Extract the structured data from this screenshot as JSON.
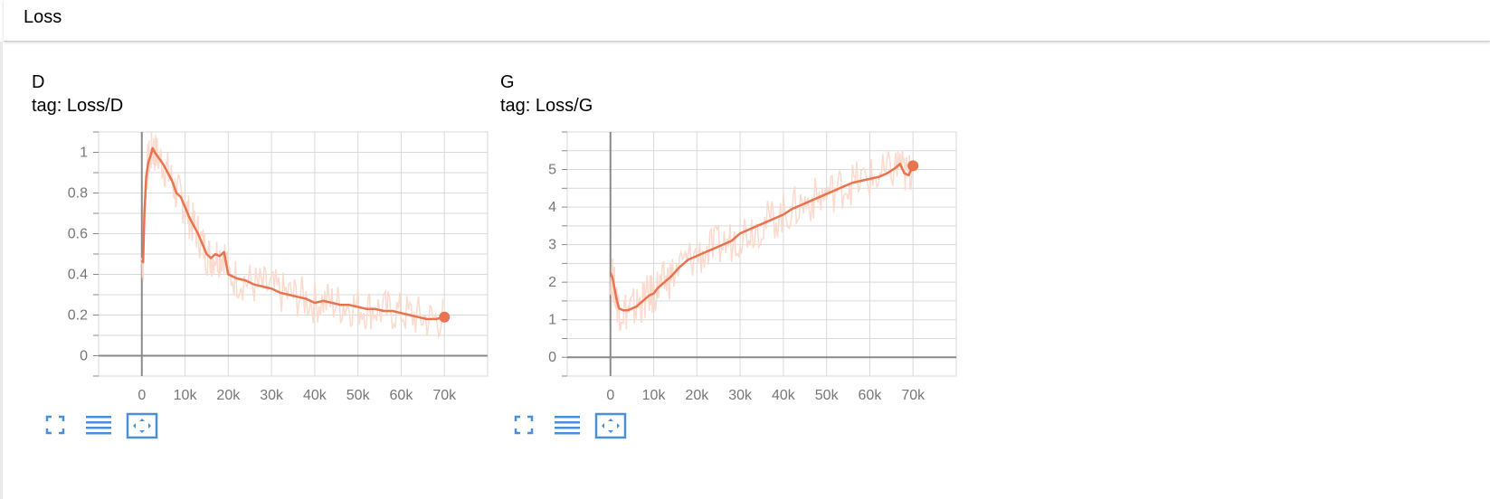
{
  "group": {
    "title": "Loss"
  },
  "cards": [
    {
      "title": "D",
      "tag": "tag: Loss/D"
    },
    {
      "title": "G",
      "tag": "tag: Loss/G"
    }
  ],
  "toolbar_icons": [
    "fit-fullscreen-icon",
    "toggle-log-scale-icon",
    "fit-domain-icon"
  ],
  "colors": {
    "smoothed_line": "#e8744f",
    "raw_line": "#fcd6c8",
    "grid": "#d9d9d9",
    "axis": "#8a8a8a",
    "icon": "#4a90d9"
  },
  "chart_data": [
    {
      "type": "line",
      "title": "D",
      "xlim": [
        -10000,
        80000
      ],
      "ylim": [
        -0.1,
        1.1
      ],
      "x_ticks": [
        0,
        10000,
        20000,
        30000,
        40000,
        50000,
        60000,
        70000
      ],
      "x_tick_labels": [
        "0",
        "10k",
        "20k",
        "30k",
        "40k",
        "50k",
        "60k",
        "70k"
      ],
      "y_ticks": [
        0,
        0.2,
        0.4,
        0.6,
        0.8,
        1
      ],
      "y_tick_labels": [
        "0",
        "0.2",
        "0.4",
        "0.6",
        "0.8",
        "1"
      ],
      "grid": true,
      "series": [
        {
          "x": [
            0,
            300,
            600,
            1000,
            1500,
            2000,
            2500,
            3000,
            4000,
            5000,
            6000,
            7000,
            8000,
            9000,
            10000,
            11000,
            12000,
            13000,
            14000,
            15000,
            16000,
            17000,
            18000,
            19000,
            20000,
            22000,
            24000,
            26000,
            28000,
            30000,
            32000,
            34000,
            36000,
            38000,
            40000,
            42000,
            44000,
            46000,
            48000,
            50000,
            52000,
            54000,
            56000,
            58000,
            60000,
            62000,
            64000,
            66000,
            68000,
            70000
          ],
          "y": [
            0.47,
            0.46,
            0.7,
            0.88,
            0.95,
            0.98,
            1.02,
            1.0,
            0.97,
            0.94,
            0.9,
            0.86,
            0.8,
            0.78,
            0.73,
            0.68,
            0.64,
            0.6,
            0.55,
            0.5,
            0.48,
            0.5,
            0.49,
            0.51,
            0.4,
            0.38,
            0.37,
            0.35,
            0.34,
            0.33,
            0.31,
            0.3,
            0.29,
            0.28,
            0.26,
            0.27,
            0.26,
            0.25,
            0.25,
            0.24,
            0.23,
            0.23,
            0.22,
            0.22,
            0.21,
            0.2,
            0.19,
            0.18,
            0.18,
            0.19
          ]
        }
      ]
    },
    {
      "type": "line",
      "title": "G",
      "xlim": [
        -10000,
        80000
      ],
      "ylim": [
        -0.5,
        6.0
      ],
      "x_ticks": [
        0,
        10000,
        20000,
        30000,
        40000,
        50000,
        60000,
        70000
      ],
      "x_tick_labels": [
        "0",
        "10k",
        "20k",
        "30k",
        "40k",
        "50k",
        "60k",
        "70k"
      ],
      "y_ticks": [
        0,
        1,
        2,
        3,
        4,
        5
      ],
      "y_tick_labels": [
        "0",
        "1",
        "2",
        "3",
        "4",
        "5"
      ],
      "grid": true,
      "series": [
        {
          "x": [
            0,
            500,
            1000,
            1500,
            2000,
            3000,
            4000,
            5000,
            6000,
            7000,
            8000,
            9000,
            10000,
            11000,
            12000,
            13000,
            14000,
            16000,
            18000,
            20000,
            22000,
            24000,
            26000,
            28000,
            30000,
            32000,
            34000,
            36000,
            38000,
            40000,
            42000,
            44000,
            46000,
            48000,
            50000,
            52000,
            54000,
            56000,
            58000,
            60000,
            62000,
            64000,
            66000,
            67000,
            68000,
            69000,
            70000
          ],
          "y": [
            2.25,
            2.1,
            1.8,
            1.5,
            1.3,
            1.25,
            1.25,
            1.3,
            1.35,
            1.45,
            1.55,
            1.65,
            1.7,
            1.85,
            1.95,
            2.05,
            2.15,
            2.4,
            2.6,
            2.7,
            2.8,
            2.9,
            3.0,
            3.1,
            3.3,
            3.4,
            3.5,
            3.6,
            3.7,
            3.8,
            3.95,
            4.05,
            4.15,
            4.25,
            4.35,
            4.45,
            4.55,
            4.65,
            4.7,
            4.75,
            4.8,
            4.9,
            5.05,
            5.15,
            4.9,
            4.85,
            5.1
          ]
        }
      ]
    }
  ]
}
